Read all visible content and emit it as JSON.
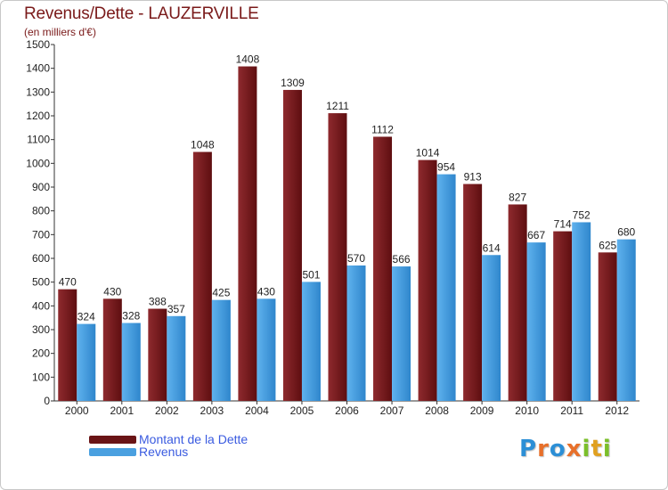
{
  "colors": {
    "debt": "#7a1c1c",
    "debt_light": "#9e3438",
    "revenue": "#4aa0e0",
    "revenue_light": "#6ab8f0",
    "title": "#7a1a1a",
    "legend_text": "#3a5be0"
  },
  "logo": {
    "letters": [
      "P",
      "r",
      "o",
      "x",
      "i",
      "t",
      "i"
    ],
    "colors": [
      "#2c8fd6",
      "#e8702a",
      "#2c8fd6",
      "#e8702a",
      "#7bbf2a",
      "#e0a020",
      "#7bbf2a"
    ]
  },
  "chart_data": {
    "type": "bar",
    "title": "Revenus/Dette - LAUZERVILLE",
    "subtitle": "(en milliers d'€)",
    "xlabel": "",
    "ylabel": "",
    "ylim": [
      0,
      1500
    ],
    "yticks": [
      0,
      100,
      200,
      300,
      400,
      500,
      600,
      700,
      800,
      900,
      1000,
      1100,
      1200,
      1300,
      1400,
      1500
    ],
    "grid": false,
    "legend_position": "bottom-left",
    "categories": [
      "2000",
      "2001",
      "2002",
      "2003",
      "2004",
      "2005",
      "2006",
      "2007",
      "2008",
      "2009",
      "2010",
      "2011",
      "2012"
    ],
    "series": [
      {
        "name": "Montant de la Dette",
        "values": [
          470,
          430,
          388,
          1048,
          1408,
          1309,
          1211,
          1112,
          1014,
          913,
          827,
          714,
          625
        ]
      },
      {
        "name": "Revenus",
        "values": [
          324,
          328,
          357,
          425,
          430,
          501,
          570,
          566,
          954,
          614,
          667,
          752,
          680
        ]
      }
    ]
  }
}
